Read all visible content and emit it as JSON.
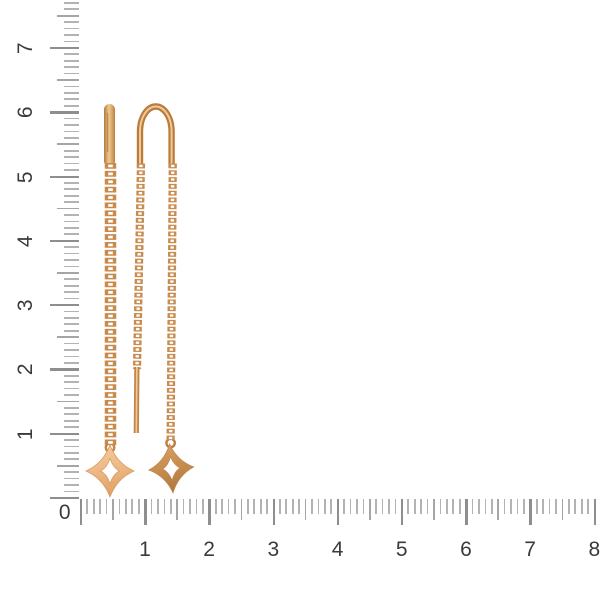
{
  "figure": {
    "description": "Pair of rose-gold threader chain earrings with four-pointed star (clover) pendants photographed on a white background behind centimeter rulers",
    "background": "#ffffff"
  },
  "rulers": {
    "unit": "cm",
    "corner_label": "0",
    "vertical": {
      "labels": [
        "1",
        "2",
        "3",
        "4",
        "5",
        "6",
        "7"
      ]
    },
    "horizontal": {
      "labels": [
        "1",
        "2",
        "3",
        "4",
        "5",
        "6",
        "7",
        "8"
      ]
    }
  },
  "palette": {
    "tick_minor": "#b3b3b3",
    "tick_medium": "#a5a5a5",
    "tick_major": "#8e8e8e",
    "label_text": "#3a3a3a",
    "gold_highlight": "#f0c78e",
    "gold_mid": "#c98c50",
    "gold_shadow": "#9c6327",
    "star_left_fill": "#eeb987",
    "star_right_fill": "#c68c50"
  }
}
